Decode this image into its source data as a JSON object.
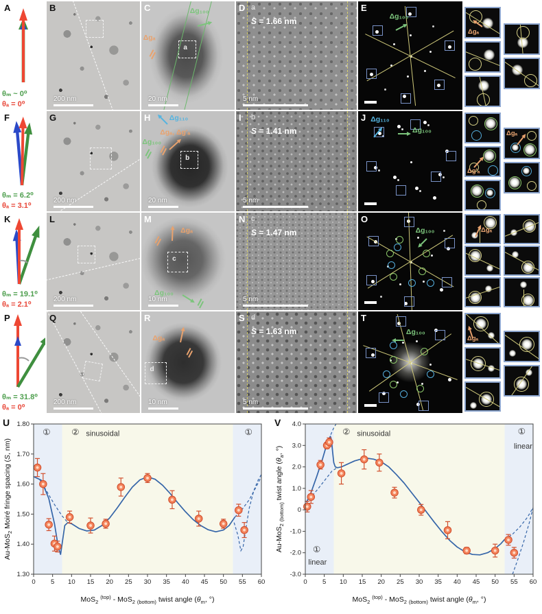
{
  "colors": {
    "arrow_red": "#ee4733",
    "arrow_green": "#3f8f3f",
    "arrow_blue": "#2b49c8",
    "theta_m_green": "#4d9e4d",
    "theta_a_red": "#e8483a",
    "ann_orange": "#e8a26e",
    "ann_green": "#7cc47c",
    "ann_cyan": "#55b4e0",
    "point_fill": "#f4845c",
    "point_edge": "#d14f2d",
    "fit_blue": "#3565a8",
    "region_linear": "#e9eff8",
    "region_sinusoidal": "#f8f8ea",
    "inset_border": "#8aa3cc",
    "saed_square": "#7a93c8",
    "saed_line": "#cfc97a"
  },
  "rows": [
    {
      "panel_letter": "A",
      "theta_m": "θₘ ~ 0⁰",
      "theta_a": "θₐ = 0⁰",
      "tem_low": {
        "letter": "B",
        "scale": "200 nm"
      },
      "tem_high": {
        "letter": "C",
        "scale": "20 nm",
        "box_label": "a",
        "ann_a": "Δgₐ",
        "ann_100": "Δg₁₀₀"
      },
      "moire": {
        "letter": "D",
        "sub": "a",
        "spacing_s": "S",
        "spacing_val": " = 1.66 nm",
        "scale": "5 nm"
      },
      "saed": {
        "letter": "E",
        "ann_100": "Δg₁₀₀"
      },
      "insets": {
        "ann": "Δgₐ"
      }
    },
    {
      "panel_letter": "F",
      "theta_m": "θₘ = 6.2⁰",
      "theta_a": "θₐ = 3.1⁰",
      "tem_low": {
        "letter": "G",
        "scale": "200 nm"
      },
      "tem_high": {
        "letter": "H",
        "scale": "20 nm",
        "box_label": "b",
        "ann_110": "Δg₁₁₀",
        "ann_a": "Δgₐ, Δg'ₐ",
        "ann_100": "Δg₁₀₀"
      },
      "moire": {
        "letter": "I",
        "sub": "b",
        "spacing_s": "S",
        "spacing_val": " = 1.41 nm",
        "scale": "5 nm"
      },
      "saed": {
        "letter": "J",
        "ann_110": "Δg₁₁₀",
        "ann_100": "Δg₁₀₀"
      },
      "insets": {
        "ann": "Δg'ₐ",
        "ann2": "Δgₐ"
      }
    },
    {
      "panel_letter": "K",
      "theta_m": "θₘ = 19.1⁰",
      "theta_a": "θₐ = 2.1⁰",
      "tem_low": {
        "letter": "L",
        "scale": "200 nm"
      },
      "tem_high": {
        "letter": "M",
        "scale": "10 nm",
        "box_label": "c",
        "ann_a": "Δgₐ",
        "ann_100": "Δg₁₀₀"
      },
      "moire": {
        "letter": "N",
        "sub": "c",
        "spacing_s": "S",
        "spacing_val": " = 1.47 nm",
        "scale": "5 nm"
      },
      "saed": {
        "letter": "O",
        "ann_100": "Δg₁₀₀"
      },
      "insets": {
        "ann": "Δgₐ"
      }
    },
    {
      "panel_letter": "P",
      "theta_m": "θₘ = 31.8⁰",
      "theta_a": "θₐ = 0⁰",
      "tem_low": {
        "letter": "Q",
        "scale": "200 nm"
      },
      "tem_high": {
        "letter": "R",
        "scale": "10 nm",
        "box_label": "d",
        "ann_a": "Δgₐ"
      },
      "moire": {
        "letter": "S",
        "sub": "d",
        "spacing_s": "S",
        "spacing_val": " = 1.63 nm",
        "scale": "5 nm"
      },
      "saed": {
        "letter": "T",
        "ann_100": "Δg₁₀₀"
      },
      "insets": {
        "ann": "Δgₐ"
      }
    }
  ],
  "chart_data": [
    {
      "panel_letter": "U",
      "type": "scatter",
      "xlim": [
        0,
        60
      ],
      "ylim": [
        1.3,
        1.8
      ],
      "x_ticks": [
        "0",
        "5",
        "10",
        "15",
        "20",
        "25",
        "30",
        "35",
        "40",
        "45",
        "50",
        "55",
        "60"
      ],
      "x_tick_values": [
        0,
        5,
        10,
        15,
        20,
        25,
        30,
        35,
        40,
        45,
        50,
        55,
        60
      ],
      "y_ticks": [
        "1.30",
        "1.40",
        "1.50",
        "1.60",
        "1.70",
        "1.80"
      ],
      "y_tick_values": [
        1.3,
        1.4,
        1.5,
        1.6,
        1.7,
        1.8
      ],
      "xlabel_parts": [
        {
          "t": "MoS"
        },
        {
          "t": "2",
          "sub": true
        },
        {
          "t": " "
        },
        {
          "t": "(top)",
          "sup": true
        },
        {
          "t": " - MoS"
        },
        {
          "t": "2",
          "sub": true
        },
        {
          "t": " "
        },
        {
          "t": "(bottom)",
          "sub": true
        },
        {
          "t": " twist angle ("
        },
        {
          "t": "θ",
          "i": true
        },
        {
          "t": "m",
          "sub": true
        },
        {
          "t": ", °)"
        }
      ],
      "ylabel_parts": [
        {
          "t": "Au-MoS"
        },
        {
          "t": "2",
          "sub": true
        },
        {
          "t": " Moiré fringe spacing ("
        },
        {
          "t": "S",
          "i": true
        },
        {
          "t": ", nm)"
        }
      ],
      "points": {
        "x": [
          1,
          2.5,
          4,
          5.5,
          6.3,
          9.5,
          15,
          19,
          23,
          30,
          36.5,
          43.5,
          50,
          54,
          55.5
        ],
        "y": [
          1.655,
          1.6,
          1.465,
          1.402,
          1.392,
          1.49,
          1.462,
          1.468,
          1.59,
          1.62,
          1.548,
          1.485,
          1.468,
          1.513,
          1.447
        ],
        "yerr": [
          0.03,
          0.035,
          0.02,
          0.025,
          0.018,
          0.02,
          0.025,
          0.015,
          0.03,
          0.015,
          0.03,
          0.025,
          0.015,
          0.02,
          0.025
        ]
      },
      "fit_solid": [
        [
          0,
          1.625
        ],
        [
          2,
          1.613
        ],
        [
          4,
          1.552
        ],
        [
          5.5,
          1.468
        ],
        [
          6.5,
          1.39
        ],
        [
          7.1,
          1.366
        ],
        [
          7.6,
          1.41
        ],
        [
          8.2,
          1.462
        ],
        [
          9,
          1.472
        ],
        [
          10,
          1.468
        ],
        [
          12,
          1.452
        ],
        [
          14,
          1.444
        ],
        [
          16,
          1.447
        ],
        [
          18,
          1.462
        ],
        [
          20,
          1.487
        ],
        [
          22,
          1.52
        ],
        [
          24,
          1.556
        ],
        [
          26,
          1.59
        ],
        [
          28,
          1.614
        ],
        [
          30,
          1.624
        ],
        [
          32,
          1.616
        ],
        [
          34,
          1.596
        ],
        [
          36,
          1.568
        ],
        [
          38,
          1.537
        ],
        [
          40,
          1.508
        ],
        [
          42,
          1.482
        ],
        [
          44,
          1.462
        ],
        [
          46,
          1.448
        ],
        [
          48,
          1.441
        ],
        [
          50,
          1.447
        ],
        [
          51.5,
          1.462
        ],
        [
          53,
          1.49
        ]
      ],
      "fit_dashed": [
        [
          [
            1.5,
            1.617
          ],
          [
            3.5,
            1.575
          ],
          [
            5.5,
            1.532
          ],
          [
            7.5,
            1.494
          ],
          [
            9,
            1.472
          ]
        ],
        [
          [
            52.8,
            1.472
          ],
          [
            53.8,
            1.43
          ],
          [
            54.6,
            1.378
          ],
          [
            55.2,
            1.392
          ],
          [
            55.9,
            1.45
          ],
          [
            56.8,
            1.52
          ],
          [
            58,
            1.578
          ],
          [
            59.2,
            1.615
          ],
          [
            60,
            1.632
          ]
        ],
        [
          [
            53,
            1.49
          ],
          [
            55,
            1.517
          ],
          [
            56.8,
            1.548
          ],
          [
            58.5,
            1.588
          ],
          [
            60,
            1.625
          ]
        ]
      ],
      "regions": [
        {
          "x0": 0,
          "x1": 7.5,
          "type": "linear"
        },
        {
          "x0": 7.5,
          "x1": 52.5,
          "type": "sinusoidal"
        },
        {
          "x0": 52.5,
          "x1": 60,
          "type": "linear"
        }
      ],
      "annotations": [
        {
          "text": "①",
          "x": 3.4,
          "y": 1.764,
          "a": "m",
          "circled": true
        },
        {
          "text": "②",
          "x": 11,
          "y": 1.764,
          "a": "m",
          "circled": true
        },
        {
          "text": "sinusoidal",
          "x": 13.8,
          "y": 1.76,
          "a": "s"
        },
        {
          "text": "①",
          "x": 56.6,
          "y": 1.764,
          "a": "m",
          "circled": true
        }
      ]
    },
    {
      "panel_letter": "V",
      "type": "scatter",
      "xlim": [
        0,
        60
      ],
      "ylim": [
        -3.0,
        4.0
      ],
      "x_ticks": [
        "0",
        "5",
        "10",
        "15",
        "20",
        "25",
        "30",
        "35",
        "40",
        "45",
        "50",
        "55",
        "60"
      ],
      "x_tick_values": [
        0,
        5,
        10,
        15,
        20,
        25,
        30,
        35,
        40,
        45,
        50,
        55,
        60
      ],
      "y_ticks": [
        "-3.0",
        "-2.0",
        "-1.0",
        "0",
        "1.0",
        "2.0",
        "3.0",
        "4.0"
      ],
      "y_tick_values": [
        -3,
        -2,
        -1,
        0,
        1,
        2,
        3,
        4
      ],
      "xlabel_parts": [
        {
          "t": "MoS"
        },
        {
          "t": "2",
          "sub": true
        },
        {
          "t": " "
        },
        {
          "t": "(top)",
          "sup": true
        },
        {
          "t": " - MoS"
        },
        {
          "t": "2",
          "sub": true
        },
        {
          "t": " "
        },
        {
          "t": "(bottom)",
          "sub": true
        },
        {
          "t": " twist angle ("
        },
        {
          "t": "θ",
          "i": true
        },
        {
          "t": "m",
          "sub": true
        },
        {
          "t": ", °)"
        }
      ],
      "ylabel_parts": [
        {
          "t": "Au-MoS"
        },
        {
          "t": "2",
          "sub": true
        },
        {
          "t": " "
        },
        {
          "t": "(bottom)",
          "sub": true
        },
        {
          "t": " twist angle ("
        },
        {
          "t": "θ",
          "i": true
        },
        {
          "t": "a",
          "sub": true
        },
        {
          "t": ", °)"
        }
      ],
      "points": {
        "x": [
          0.5,
          1.5,
          4,
          5.7,
          6.3,
          9.5,
          15.5,
          19.5,
          23.5,
          30.5,
          37.5,
          42.5,
          50,
          53.5,
          55
        ],
        "y": [
          0.15,
          0.6,
          2.1,
          3.0,
          3.15,
          1.7,
          2.35,
          2.2,
          0.8,
          0.0,
          -0.95,
          -1.9,
          -1.9,
          -1.4,
          -2.0
        ],
        "yerr": [
          0.25,
          0.3,
          0.2,
          0.15,
          0.2,
          0.5,
          0.45,
          0.4,
          0.25,
          0.25,
          0.4,
          0.15,
          0.3,
          0.25,
          0.25
        ]
      },
      "fit_solid": [
        [
          0.3,
          0.35
        ],
        [
          1.5,
          0.8
        ],
        [
          3,
          1.55
        ],
        [
          4.5,
          2.35
        ],
        [
          5.5,
          2.95
        ],
        [
          6.2,
          3.3
        ],
        [
          6.6,
          3.42
        ],
        [
          6.9,
          3.25
        ],
        [
          7.2,
          2.7
        ],
        [
          7.5,
          2.2
        ],
        [
          7.9,
          2.0
        ],
        [
          8.5,
          1.96
        ],
        [
          9.5,
          2.0
        ],
        [
          11,
          2.12
        ],
        [
          13,
          2.28
        ],
        [
          15,
          2.38
        ],
        [
          16.5,
          2.4
        ],
        [
          18,
          2.36
        ],
        [
          20,
          2.24
        ],
        [
          22,
          2.0
        ],
        [
          24,
          1.64
        ],
        [
          26,
          1.25
        ],
        [
          28,
          0.8
        ],
        [
          30,
          0.35
        ],
        [
          32,
          -0.12
        ],
        [
          34,
          -0.58
        ],
        [
          36,
          -1.02
        ],
        [
          38,
          -1.42
        ],
        [
          40,
          -1.73
        ],
        [
          42,
          -1.95
        ],
        [
          44,
          -2.08
        ],
        [
          46,
          -2.1
        ],
        [
          48,
          -2.0
        ],
        [
          50,
          -1.8
        ],
        [
          51.5,
          -1.58
        ],
        [
          52.5,
          -1.38
        ]
      ],
      "fit_dashed": [
        [
          [
            1,
            0.5
          ],
          [
            3,
            0.9
          ],
          [
            5,
            1.35
          ],
          [
            7,
            1.8
          ],
          [
            8.3,
            1.95
          ]
        ],
        [
          [
            6.7,
            3.5
          ],
          [
            7.4,
            3.78
          ],
          [
            8.1,
            4.0
          ]
        ],
        [
          [
            54.6,
            -3.0
          ],
          [
            56,
            -2.3
          ],
          [
            57.5,
            -1.5
          ],
          [
            59,
            -0.6
          ],
          [
            60,
            0.1
          ]
        ],
        [
          [
            52.5,
            -1.38
          ],
          [
            54.5,
            -1.15
          ],
          [
            56.5,
            -0.8
          ],
          [
            58.5,
            -0.35
          ],
          [
            60,
            0.1
          ]
        ]
      ],
      "regions": [
        {
          "x0": 0,
          "x1": 7.5,
          "type": "linear"
        },
        {
          "x0": 7.5,
          "x1": 52.5,
          "type": "sinusoidal"
        },
        {
          "x0": 52.5,
          "x1": 60,
          "type": "linear"
        }
      ],
      "annotations": [
        {
          "text": "②",
          "x": 10.8,
          "y": 3.5,
          "a": "m",
          "circled": true
        },
        {
          "text": "sinusoidal",
          "x": 13.6,
          "y": 3.44,
          "a": "s"
        },
        {
          "text": "①",
          "x": 57,
          "y": 3.52,
          "a": "m",
          "circled": true
        },
        {
          "text": "linear",
          "x": 59.8,
          "y": 2.85,
          "a": "e"
        },
        {
          "text": "①",
          "x": 3,
          "y": -1.98,
          "a": "m",
          "circled": true
        },
        {
          "text": "linear",
          "x": 0.8,
          "y": -2.55,
          "a": "s"
        }
      ]
    }
  ]
}
